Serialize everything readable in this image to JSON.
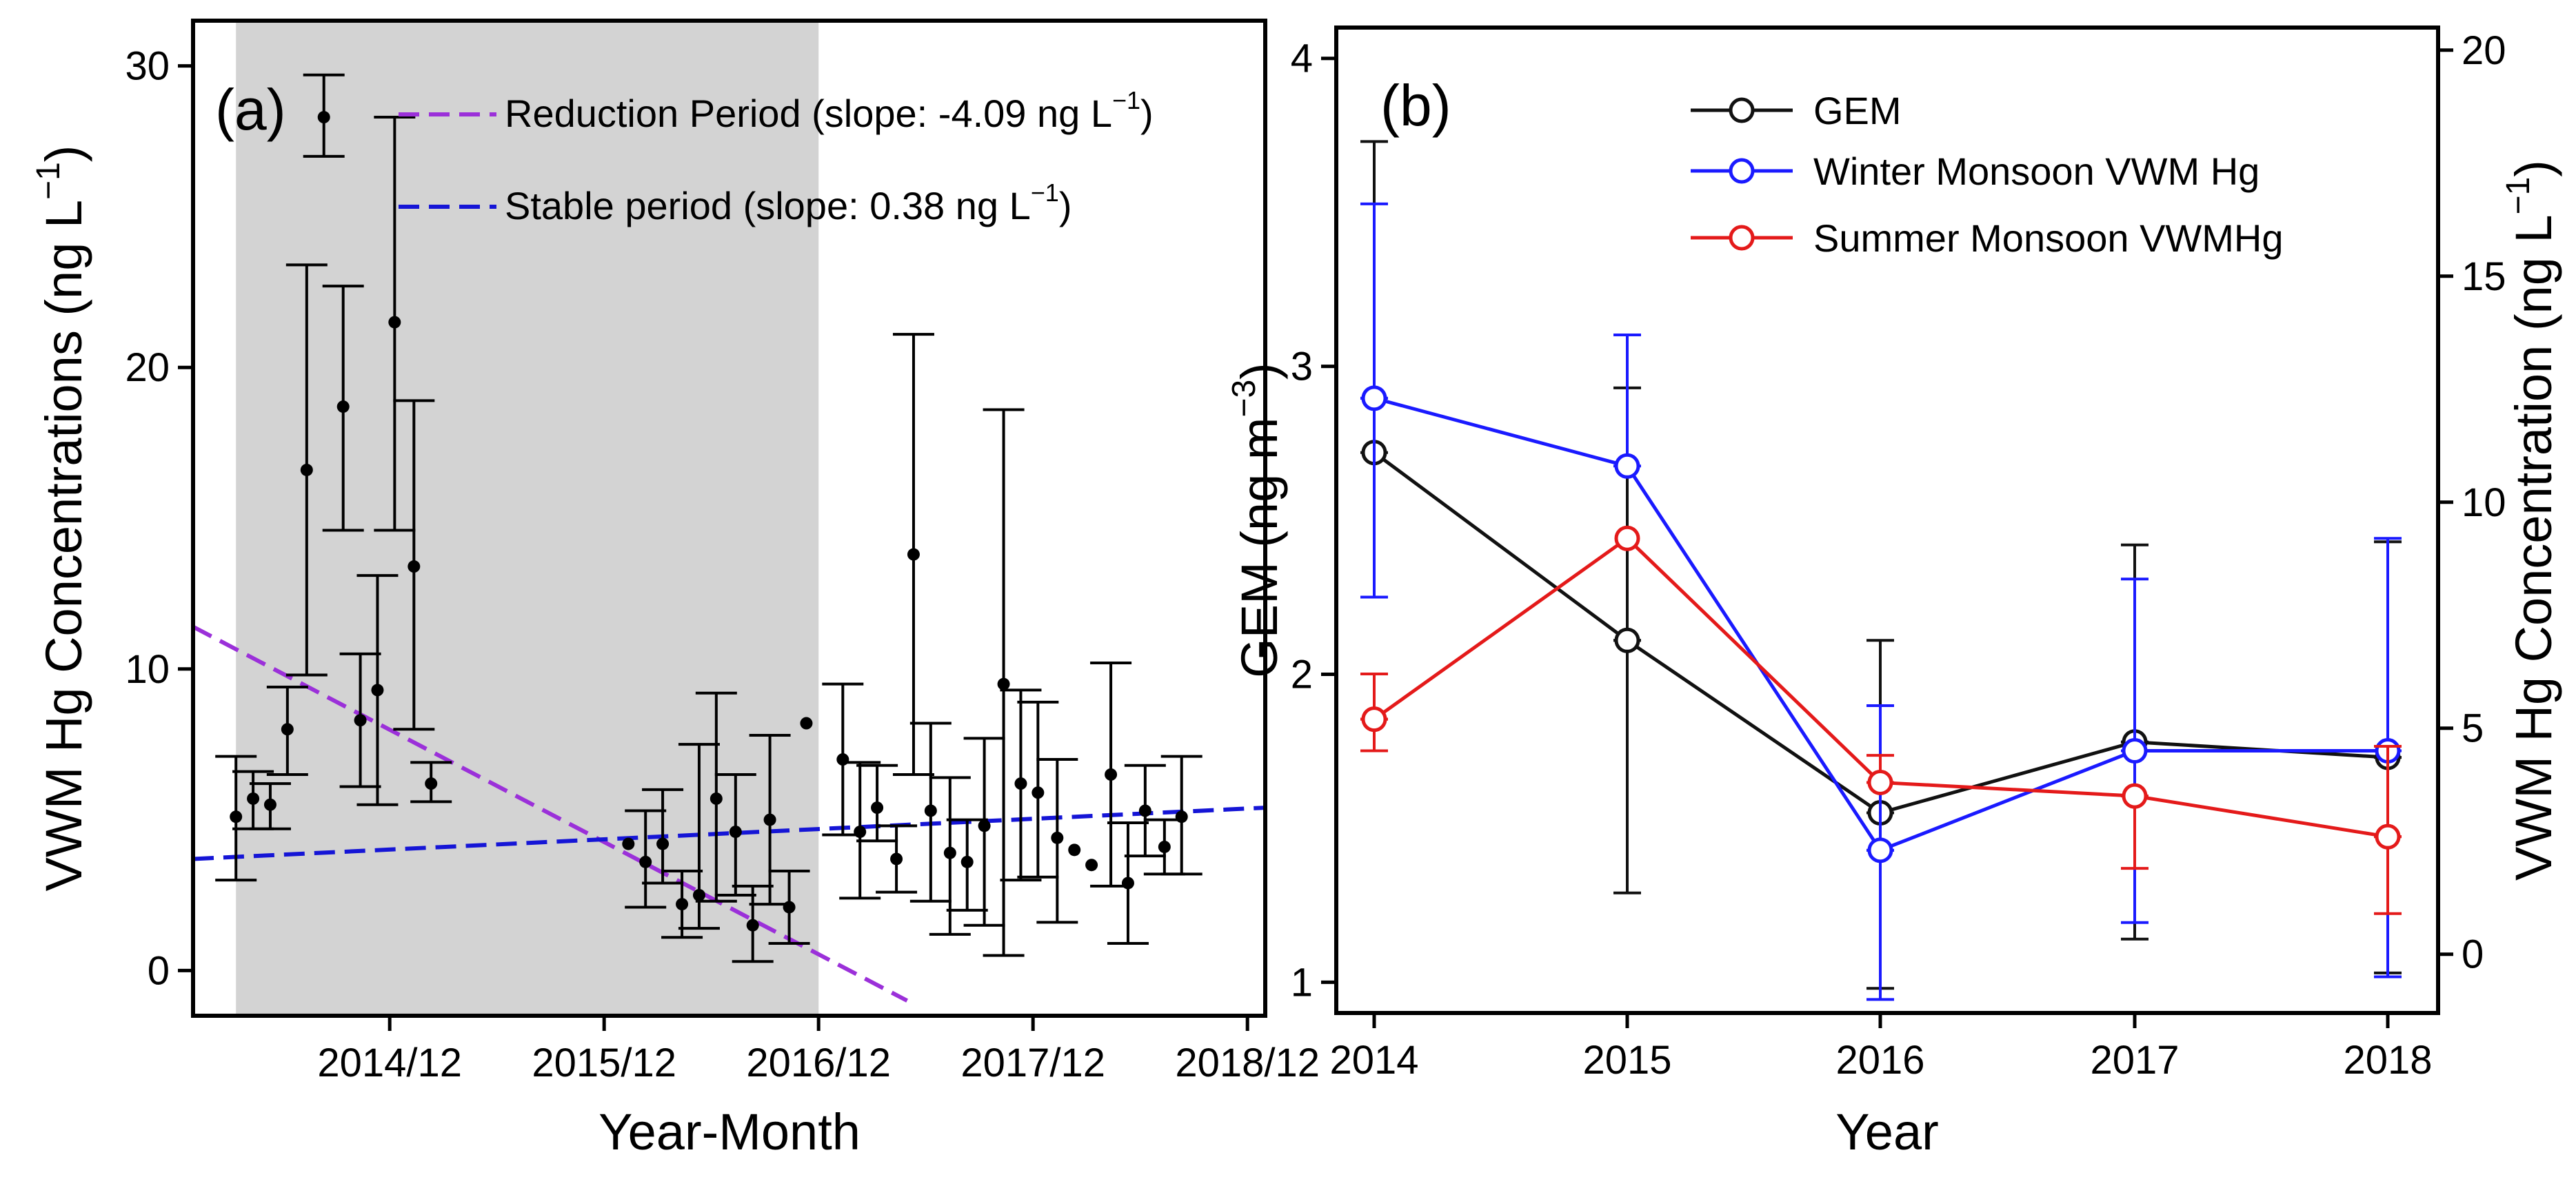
{
  "chart_data": [
    {
      "type": "scatter",
      "panel_label": "(a)",
      "xlabel": "Year-Month",
      "ylabel": "VWM Hg Concentrations (ng L",
      "ylabel_exp": "−1",
      "ylabel_end": ")",
      "x_unit": "decimal year",
      "xlim": [
        2014.0,
        2019.0
      ],
      "ylim": [
        -1.5,
        31.5
      ],
      "xticks": [
        {
          "label": "2014/12",
          "x": 2014.917
        },
        {
          "label": "2015/12",
          "x": 2015.917
        },
        {
          "label": "2016/12",
          "x": 2016.917
        },
        {
          "label": "2017/12",
          "x": 2017.917
        },
        {
          "label": "2018/12",
          "x": 2018.917
        }
      ],
      "yticks": [
        0,
        10,
        20,
        30
      ],
      "shaded_period": {
        "from": 2014.2,
        "to": 2016.917,
        "color": "#d3d3d3"
      },
      "trend_lines": [
        {
          "name": "Reduction Period (slope: -4.09 ng L",
          "exp": "−1",
          "end": ")",
          "color": "#9b30d9",
          "x": [
            2014.0,
            2017.33
          ],
          "y": [
            11.4,
            -1.0
          ]
        },
        {
          "name": "Stable period (slope: 0.38 ng L",
          "exp": "−1",
          "end": ")",
          "color": "#1515d6",
          "x": [
            2014.0,
            2019.0
          ],
          "y": [
            3.7,
            5.4
          ]
        }
      ],
      "points": [
        {
          "x": 2014.2,
          "y": 5.1,
          "lo": 3.0,
          "hi": 7.1
        },
        {
          "x": 2014.28,
          "y": 5.7,
          "lo": 4.7,
          "hi": 6.6
        },
        {
          "x": 2014.36,
          "y": 5.5,
          "lo": 4.7,
          "hi": 6.2
        },
        {
          "x": 2014.44,
          "y": 8.0,
          "lo": 6.5,
          "hi": 9.4
        },
        {
          "x": 2014.53,
          "y": 16.6,
          "lo": 9.8,
          "hi": 23.4
        },
        {
          "x": 2014.61,
          "y": 28.3,
          "lo": 27.0,
          "hi": 29.7
        },
        {
          "x": 2014.7,
          "y": 18.7,
          "lo": 14.6,
          "hi": 22.7
        },
        {
          "x": 2014.78,
          "y": 8.3,
          "lo": 6.1,
          "hi": 10.5
        },
        {
          "x": 2014.86,
          "y": 9.3,
          "lo": 5.5,
          "hi": 13.1
        },
        {
          "x": 2014.94,
          "y": 21.5,
          "lo": 14.6,
          "hi": 28.3
        },
        {
          "x": 2015.03,
          "y": 13.4,
          "lo": 8.0,
          "hi": 18.9
        },
        {
          "x": 2015.11,
          "y": 6.2,
          "lo": 5.6,
          "hi": 6.9
        },
        {
          "x": 2016.03,
          "y": 4.2
        },
        {
          "x": 2016.11,
          "y": 3.6,
          "lo": 2.1,
          "hi": 5.3
        },
        {
          "x": 2016.19,
          "y": 4.2,
          "lo": 2.9,
          "hi": 6.0
        },
        {
          "x": 2016.28,
          "y": 2.2,
          "lo": 1.1,
          "hi": 3.3
        },
        {
          "x": 2016.36,
          "y": 2.5,
          "lo": 1.4,
          "hi": 7.5
        },
        {
          "x": 2016.44,
          "y": 5.7,
          "lo": 2.3,
          "hi": 9.2
        },
        {
          "x": 2016.53,
          "y": 4.6,
          "lo": 2.5,
          "hi": 6.5
        },
        {
          "x": 2016.61,
          "y": 1.5,
          "lo": 0.3,
          "hi": 2.8
        },
        {
          "x": 2016.69,
          "y": 5.0,
          "lo": 2.2,
          "hi": 7.8
        },
        {
          "x": 2016.78,
          "y": 2.1,
          "lo": 0.9,
          "hi": 3.3
        },
        {
          "x": 2016.86,
          "y": 8.2
        },
        {
          "x": 2017.03,
          "y": 7.0,
          "lo": 4.5,
          "hi": 9.5
        },
        {
          "x": 2017.11,
          "y": 4.6,
          "lo": 2.4,
          "hi": 6.9
        },
        {
          "x": 2017.19,
          "y": 5.4,
          "lo": 4.3,
          "hi": 6.8
        },
        {
          "x": 2017.28,
          "y": 3.7,
          "lo": 2.6,
          "hi": 4.8
        },
        {
          "x": 2017.36,
          "y": 13.8,
          "lo": 6.5,
          "hi": 21.1
        },
        {
          "x": 2017.44,
          "y": 5.3,
          "lo": 2.3,
          "hi": 8.2
        },
        {
          "x": 2017.53,
          "y": 3.9,
          "lo": 1.2,
          "hi": 6.4
        },
        {
          "x": 2017.61,
          "y": 3.6,
          "lo": 2.0,
          "hi": 5.0
        },
        {
          "x": 2017.69,
          "y": 4.8,
          "lo": 1.5,
          "hi": 7.7
        },
        {
          "x": 2017.78,
          "y": 9.5,
          "lo": 0.5,
          "hi": 18.6
        },
        {
          "x": 2017.86,
          "y": 6.2,
          "lo": 3.0,
          "hi": 9.3
        },
        {
          "x": 2017.94,
          "y": 5.9,
          "lo": 3.1,
          "hi": 8.9
        },
        {
          "x": 2018.03,
          "y": 4.4,
          "lo": 1.6,
          "hi": 7.0
        },
        {
          "x": 2018.11,
          "y": 4.0
        },
        {
          "x": 2018.19,
          "y": 3.5
        },
        {
          "x": 2018.28,
          "y": 6.5,
          "lo": 2.8,
          "hi": 10.2
        },
        {
          "x": 2018.36,
          "y": 2.9,
          "lo": 0.9,
          "hi": 4.9
        },
        {
          "x": 2018.44,
          "y": 5.3,
          "lo": 3.8,
          "hi": 6.8
        },
        {
          "x": 2018.53,
          "y": 4.1,
          "lo": 3.2,
          "hi": 5.0
        },
        {
          "x": 2018.61,
          "y": 5.1,
          "lo": 3.2,
          "hi": 7.1
        }
      ]
    },
    {
      "type": "line",
      "panel_label": "(b)",
      "xlabel": "Year",
      "categories": [
        "2014",
        "2015",
        "2016",
        "2017",
        "2018"
      ],
      "ylabel_left": "GEM (ng m",
      "ylabel_left_exp": "−3",
      "ylabel_left_end": ")",
      "ylabel_right": "VWM Hg Concentration (ng L",
      "ylabel_right_exp": "−1",
      "ylabel_right_end": ")",
      "ylim_left": [
        0.9,
        4.1
      ],
      "ylim_right": [
        -1.3,
        20.5
      ],
      "yticks_left": [
        1,
        2,
        3,
        4
      ],
      "yticks_right": [
        0,
        5,
        10,
        15,
        20
      ],
      "series": [
        {
          "name": "GEM",
          "axis": "left",
          "color": "#111111",
          "values": [
            2.72,
            2.11,
            1.55,
            1.78,
            1.73
          ],
          "lo": [
            null,
            1.29,
            0.98,
            1.14,
            1.03
          ],
          "hi": [
            3.73,
            2.93,
            2.11,
            2.42,
            2.43
          ]
        },
        {
          "name": "Winter Monsoon VWM Hg",
          "axis": "right",
          "color": "#1a1aff",
          "values": [
            12.3,
            10.8,
            2.3,
            4.5,
            4.5
          ],
          "lo": [
            7.9,
            null,
            -1.0,
            0.7,
            -0.5
          ],
          "hi": [
            16.6,
            13.7,
            5.5,
            8.3,
            9.2
          ]
        },
        {
          "name": "Summer Monsoon VWMHg",
          "axis": "right",
          "color": "#e41a1a",
          "values": [
            5.2,
            9.2,
            3.8,
            3.5,
            2.6
          ],
          "lo": [
            4.5,
            null,
            null,
            1.9,
            0.9
          ],
          "hi": [
            6.2,
            null,
            4.4,
            null,
            4.6
          ]
        }
      ]
    }
  ]
}
